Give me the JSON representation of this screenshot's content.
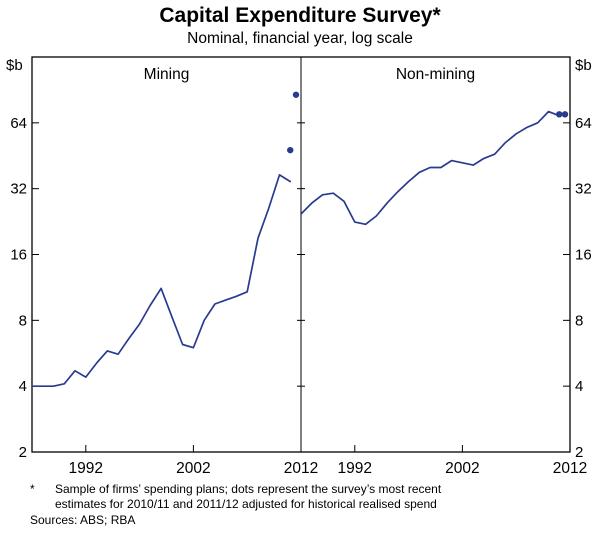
{
  "title": "Capital Expenditure Survey*",
  "subtitle": "Nominal, financial year, log scale",
  "footnote": {
    "marker": "*",
    "line1": "Sample of firms’ spending plans; dots represent the survey’s most recent",
    "line2": "estimates for 2010/11 and 2011/12 adjusted for historical realised spend",
    "sources": "Sources: ABS; RBA"
  },
  "chart_data": {
    "type": "line",
    "title": "Capital Expenditure Survey*",
    "subtitle": "Nominal, financial year, log scale",
    "y_axis": {
      "unit": "$b",
      "scale": "log2",
      "min": 2,
      "max": 128,
      "ticks": [
        2,
        4,
        8,
        16,
        32,
        64
      ]
    },
    "x_axis": {
      "min": 1987,
      "max": 2012,
      "ticks": [
        1992,
        2002,
        2012
      ]
    },
    "line_color": "#2A3B8F",
    "dot_color": "#2A3B8F",
    "panels": [
      {
        "label": "Mining",
        "points": [
          [
            1987,
            4.0
          ],
          [
            1988,
            4.0
          ],
          [
            1989,
            4.0
          ],
          [
            1990,
            4.1
          ],
          [
            1991,
            4.7
          ],
          [
            1992,
            4.4
          ],
          [
            1993,
            5.1
          ],
          [
            1994,
            5.8
          ],
          [
            1995,
            5.6
          ],
          [
            1996,
            6.6
          ],
          [
            1997,
            7.7
          ],
          [
            1998,
            9.4
          ],
          [
            1999,
            11.2
          ],
          [
            2000,
            8.3
          ],
          [
            2001,
            6.2
          ],
          [
            2002,
            6.0
          ],
          [
            2003,
            8.0
          ],
          [
            2004,
            9.5
          ],
          [
            2005,
            9.9
          ],
          [
            2006,
            10.3
          ],
          [
            2007,
            10.8
          ],
          [
            2008,
            19.0
          ],
          [
            2009,
            26.0
          ],
          [
            2010,
            37.0
          ],
          [
            2011,
            34.5
          ]
        ],
        "dots": [
          {
            "fy": "2010/11",
            "year": 2011,
            "value": 48
          },
          {
            "fy": "2011/12",
            "year": 2012,
            "value": 86
          }
        ]
      },
      {
        "label": "Non-mining",
        "points": [
          [
            1987,
            24.5
          ],
          [
            1988,
            27.5
          ],
          [
            1989,
            30.0
          ],
          [
            1990,
            30.5
          ],
          [
            1991,
            28.0
          ],
          [
            1992,
            22.5
          ],
          [
            1993,
            22.0
          ],
          [
            1994,
            24.0
          ],
          [
            1995,
            27.5
          ],
          [
            1996,
            31.0
          ],
          [
            1997,
            34.5
          ],
          [
            1998,
            38.0
          ],
          [
            1999,
            40.0
          ],
          [
            2000,
            40.0
          ],
          [
            2001,
            43.0
          ],
          [
            2002,
            42.0
          ],
          [
            2003,
            41.0
          ],
          [
            2004,
            44.0
          ],
          [
            2005,
            46.0
          ],
          [
            2006,
            52.0
          ],
          [
            2007,
            57.0
          ],
          [
            2008,
            61.0
          ],
          [
            2009,
            64.0
          ],
          [
            2010,
            72.0
          ],
          [
            2011,
            69.0
          ]
        ],
        "dots": [
          {
            "fy": "2010/11",
            "year": 2011,
            "value": 70
          },
          {
            "fy": "2011/12",
            "year": 2012,
            "value": 70
          }
        ]
      }
    ]
  }
}
